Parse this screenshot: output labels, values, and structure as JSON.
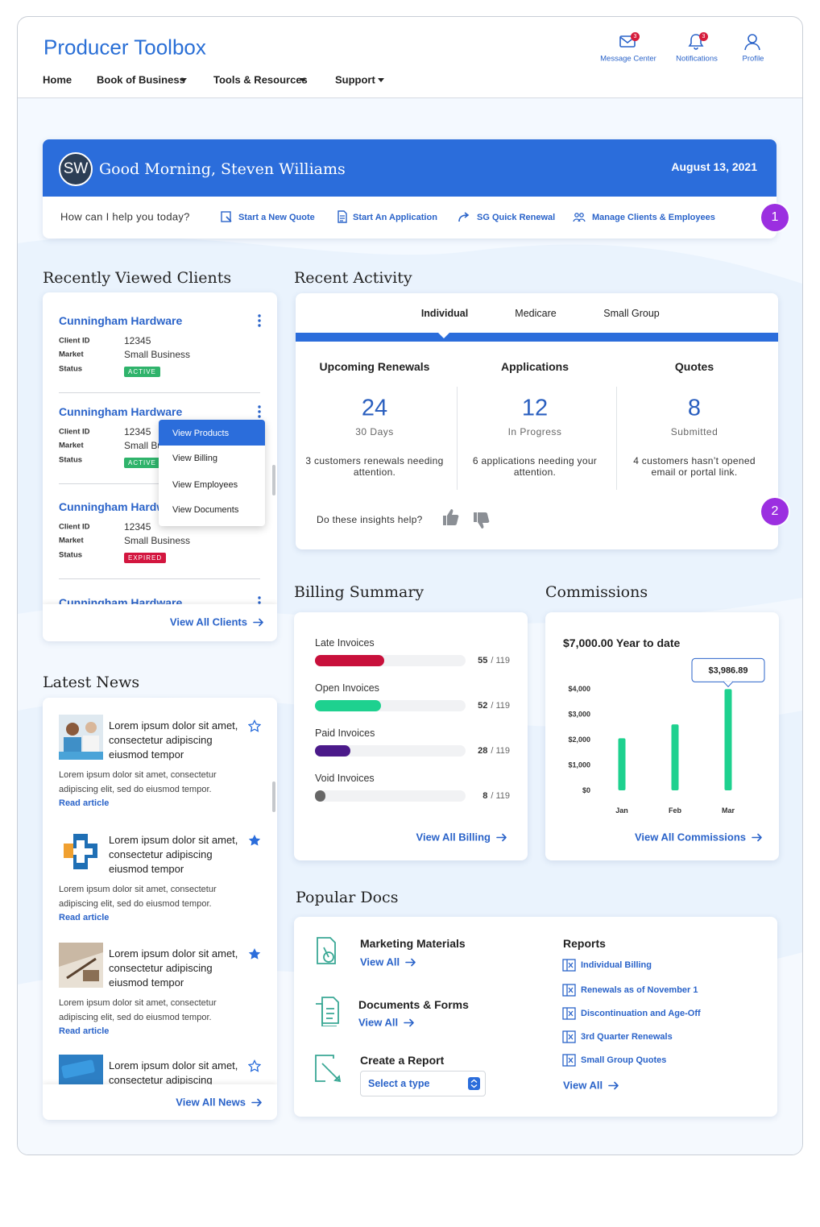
{
  "header": {
    "title": "Producer Toolbox",
    "nav": [
      "Home",
      "Book of Business",
      "Tools & Resources",
      "Support"
    ],
    "utilities": [
      {
        "label": "Message Center",
        "badge": "3"
      },
      {
        "label": "Notifications",
        "badge": "3"
      },
      {
        "label": "Profile"
      }
    ]
  },
  "welcome": {
    "initials": "SW",
    "greeting": "Good Morning, Steven Williams",
    "date": "August 13, 2021",
    "prompt": "How can I help you today?",
    "actions": [
      "Start a New Quote",
      "Start An Application",
      "SG Quick Renewal",
      "Manage Clients & Employees"
    ],
    "marker": "1"
  },
  "recent_clients": {
    "title": "Recently Viewed Clients",
    "field_labels": [
      "Client ID",
      "Market",
      "Status"
    ],
    "clients": [
      {
        "name": "Cunningham Hardware",
        "client_id": "12345",
        "market": "Small Business",
        "status": "ACTIVE"
      },
      {
        "name": "Cunningham Hardware",
        "client_id": "12345",
        "market": "Small Business",
        "status": "ACTIVE"
      },
      {
        "name": "Cunningham Hardware",
        "client_id": "12345",
        "market": "Small Business",
        "status": "EXPIRED"
      },
      {
        "name": "Cunningham Hardware"
      }
    ],
    "menu": [
      "View Products",
      "View Billing",
      "View Employees",
      "View Documents"
    ],
    "view_all": "View All Clients"
  },
  "recent_activity": {
    "title": "Recent Activity",
    "tabs": [
      "Individual",
      "Medicare",
      "Small Group"
    ],
    "stats": [
      {
        "title": "Upcoming Renewals",
        "value": 24,
        "unit": "30 Days",
        "note": "3 customers renewals needing attention."
      },
      {
        "title": "Applications",
        "value": 12,
        "unit": "In Progress",
        "note": "6 applications needing your attention."
      },
      {
        "title": "Quotes",
        "value": 8,
        "unit": "Submitted",
        "note": "4 customers hasn’t opened email or portal link."
      }
    ],
    "feedback": "Do these insights help?",
    "marker": "2"
  },
  "billing": {
    "title": "Billing Summary",
    "items": [
      {
        "label": "Late Invoices",
        "value": 55,
        "total": 119,
        "total_label": "/ 119",
        "color": "#c8103b"
      },
      {
        "label": "Open Invoices",
        "value": 52,
        "total": 119,
        "total_label": "/ 119",
        "color": "#1ed18f"
      },
      {
        "label": "Paid Invoices",
        "value": 28,
        "total": 119,
        "total_label": "/ 119",
        "color": "#4b1a8a"
      },
      {
        "label": "Void Invoices",
        "value": 8,
        "total": 119,
        "total_label": "/ 119",
        "color": "#666666"
      }
    ],
    "view_all": "View All Billing"
  },
  "commissions": {
    "title": "Commissions",
    "summary": "$7,000.00 Year to date",
    "view_all": "View All Commissions"
  },
  "chart_data": {
    "type": "bar",
    "categories": [
      "Jan",
      "Feb",
      "Mar"
    ],
    "values": [
      2050,
      2600,
      3986.89
    ],
    "value_labels": [
      null,
      null,
      "$3,986.89"
    ],
    "color": "#1ed18f",
    "ylim": [
      0,
      4000
    ],
    "yticks": [
      {
        "value": 0,
        "label": "$0"
      },
      {
        "value": 1000,
        "label": "$1,000"
      },
      {
        "value": 2000,
        "label": "$2,000"
      },
      {
        "value": 3000,
        "label": "$3,000"
      },
      {
        "value": 4000,
        "label": "$4,000"
      }
    ]
  },
  "news": {
    "title": "Latest News",
    "items": [
      {
        "headline": "Lorem ipsum dolor sit amet, consectetur adipiscing eiusmod tempor",
        "body": "Lorem ipsum dolor sit amet, consectetur adipiscing elit, sed do eiusmod tempor.",
        "link": "Read article",
        "starred": false
      },
      {
        "headline": "Lorem ipsum dolor sit amet, consectetur adipiscing eiusmod tempor",
        "body": "Lorem ipsum dolor sit amet, consectetur adipiscing elit, sed do eiusmod tempor.",
        "link": "Read article",
        "starred": true
      },
      {
        "headline": "Lorem ipsum dolor sit amet, consectetur adipiscing eiusmod tempor",
        "body": "Lorem ipsum dolor sit amet, consectetur adipiscing elit, sed do eiusmod tempor.",
        "link": "Read article",
        "starred": true
      },
      {
        "headline": "Lorem ipsum dolor sit amet, consectetur adipiscing",
        "starred": false
      }
    ],
    "view_all": "View All News"
  },
  "popular_docs": {
    "title": "Popular Docs",
    "sections": [
      {
        "title": "Marketing Materials",
        "link": "View All"
      },
      {
        "title": "Documents & Forms",
        "link": "View All"
      },
      {
        "title": "Create a Report",
        "select": "Select a type"
      }
    ],
    "reports": {
      "title": "Reports",
      "items": [
        "Individual Billing",
        "Renewals as of November 1",
        "Discontinuation and Age-Off",
        "3rd Quarter Renewals",
        "Small Group Quotes"
      ],
      "link": "View All"
    }
  }
}
